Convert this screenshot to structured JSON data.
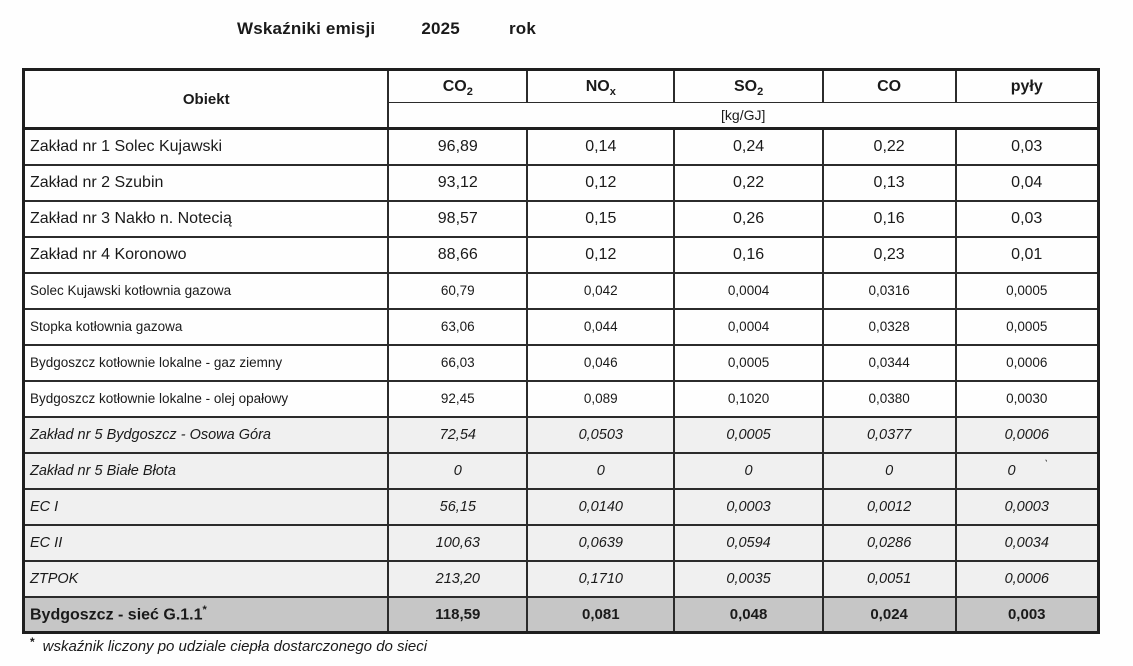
{
  "title": {
    "label": "Wskaźniki emisji",
    "year": "2025",
    "suffix": "rok"
  },
  "table": {
    "object_header": "Obiekt",
    "unit_label": "[kg/GJ]",
    "columns": [
      {
        "id": "co2",
        "base": "CO",
        "sub": "2"
      },
      {
        "id": "nox",
        "base": "NO",
        "sub": "x"
      },
      {
        "id": "so2",
        "base": "SO",
        "sub": "2"
      },
      {
        "id": "co",
        "base": "CO",
        "sub": ""
      },
      {
        "id": "pyly",
        "base": "pyły",
        "sub": ""
      }
    ],
    "rows": [
      {
        "name": "Zakład nr 1  Solec Kujawski",
        "values": [
          "96,89",
          "0,14",
          "0,24",
          "0,22",
          "0,03"
        ],
        "style": "plant"
      },
      {
        "name": "Zakład nr 2  Szubin",
        "values": [
          "93,12",
          "0,12",
          "0,22",
          "0,13",
          "0,04"
        ],
        "style": "plant"
      },
      {
        "name": "Zakład nr 3  Nakło n. Notecią",
        "values": [
          "98,57",
          "0,15",
          "0,26",
          "0,16",
          "0,03"
        ],
        "style": "plant"
      },
      {
        "name": "Zakład nr 4  Koronowo",
        "values": [
          "88,66",
          "0,12",
          "0,16",
          "0,23",
          "0,01"
        ],
        "style": "plant"
      },
      {
        "name": "Solec Kujawski  kotłownia gazowa",
        "values": [
          "60,79",
          "0,042",
          "0,0004",
          "0,0316",
          "0,0005"
        ],
        "style": "small"
      },
      {
        "name": "Stopka kotłownia gazowa",
        "values": [
          "63,06",
          "0,044",
          "0,0004",
          "0,0328",
          "0,0005"
        ],
        "style": "small"
      },
      {
        "name": "Bydgoszcz kotłownie lokalne - gaz ziemny",
        "values": [
          "66,03",
          "0,046",
          "0,0005",
          "0,0344",
          "0,0006"
        ],
        "style": "small"
      },
      {
        "name": "Bydgoszcz kotłownie lokalne - olej opałowy",
        "values": [
          "92,45",
          "0,089",
          "0,1020",
          "0,0380",
          "0,0030"
        ],
        "style": "small"
      },
      {
        "name": "Zakład nr 5  Bydgoszcz - Osowa Góra",
        "values": [
          "72,54",
          "0,0503",
          "0,0005",
          "0,0377",
          "0,0006"
        ],
        "style": "italic"
      },
      {
        "name": "Zakład nr 5 Białe Błota",
        "values": [
          "0",
          "0",
          "0",
          "0",
          "0"
        ],
        "style": "italic",
        "stray_mark": "ˋ"
      },
      {
        "name": "EC I",
        "values": [
          "56,15",
          "0,0140",
          "0,0003",
          "0,0012",
          "0,0003"
        ],
        "style": "italic"
      },
      {
        "name": "EC II",
        "values": [
          "100,63",
          "0,0639",
          "0,0594",
          "0,0286",
          "0,0034"
        ],
        "style": "italic"
      },
      {
        "name": "ZTPOK",
        "values": [
          "213,20",
          "0,1710",
          "0,0035",
          "0,0051",
          "0,0006"
        ],
        "style": "italic"
      },
      {
        "name": "Bydgoszcz - sieć  G.1.1",
        "name_marker": "*",
        "values": [
          "118,59",
          "0,081",
          "0,048",
          "0,024",
          "0,003"
        ],
        "style": "total"
      }
    ]
  },
  "footnote": {
    "marker": "*",
    "text": "wskaźnik liczony po udziale ciepła dostarczonego do sieci"
  },
  "colors": {
    "grid": "#2b2b2b",
    "outer_border": "#1e1e1e",
    "total_row_bg": "#c6c6c6",
    "italic_row_bg": "#f0f0f0",
    "text": "#1a1a1a"
  }
}
